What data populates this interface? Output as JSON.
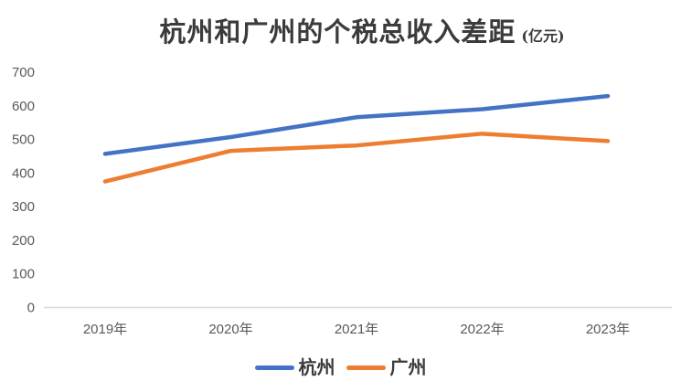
{
  "chart_data": {
    "type": "line",
    "title": "杭州和广州的个税总收入差距",
    "title_suffix": "(亿元)",
    "categories": [
      "2019年",
      "2020年",
      "2021年",
      "2022年",
      "2023年"
    ],
    "series": [
      {
        "name": "杭州",
        "color": "#4472C4",
        "values": [
          457,
          507,
          566,
          590,
          629
        ]
      },
      {
        "name": "广州",
        "color": "#ED7D31",
        "values": [
          375,
          466,
          482,
          517,
          495
        ]
      }
    ],
    "ylim": [
      0,
      700
    ],
    "yticks": [
      0,
      100,
      200,
      300,
      400,
      500,
      600,
      700
    ],
    "grid": false,
    "legend_position": "bottom",
    "colors": {
      "axis_line": "#D9D9D9",
      "tick_label": "#595959",
      "title_text": "#3B3B3B"
    }
  }
}
